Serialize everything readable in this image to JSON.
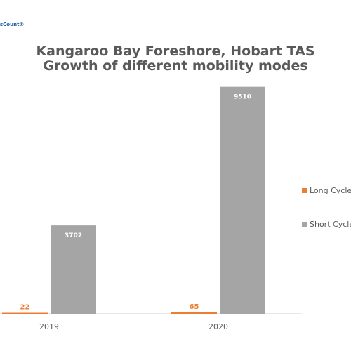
{
  "logo_text": "sCount®",
  "chart_data": {
    "type": "bar",
    "title_lines": [
      "Kangaroo Bay Foreshore, Hobart TAS",
      "Growth of different mobility modes"
    ],
    "xlabel": "",
    "ylabel": "",
    "categories": [
      "2019",
      "2020"
    ],
    "series": [
      {
        "name": "Long Cycle",
        "color": "#ed7d31",
        "values": [
          22,
          65
        ]
      },
      {
        "name": "Short Cycle",
        "color": "#a5a5a5",
        "values": [
          3702,
          9510
        ]
      }
    ],
    "ylim": [
      0,
      10500
    ],
    "grid": false,
    "legend": "right"
  }
}
